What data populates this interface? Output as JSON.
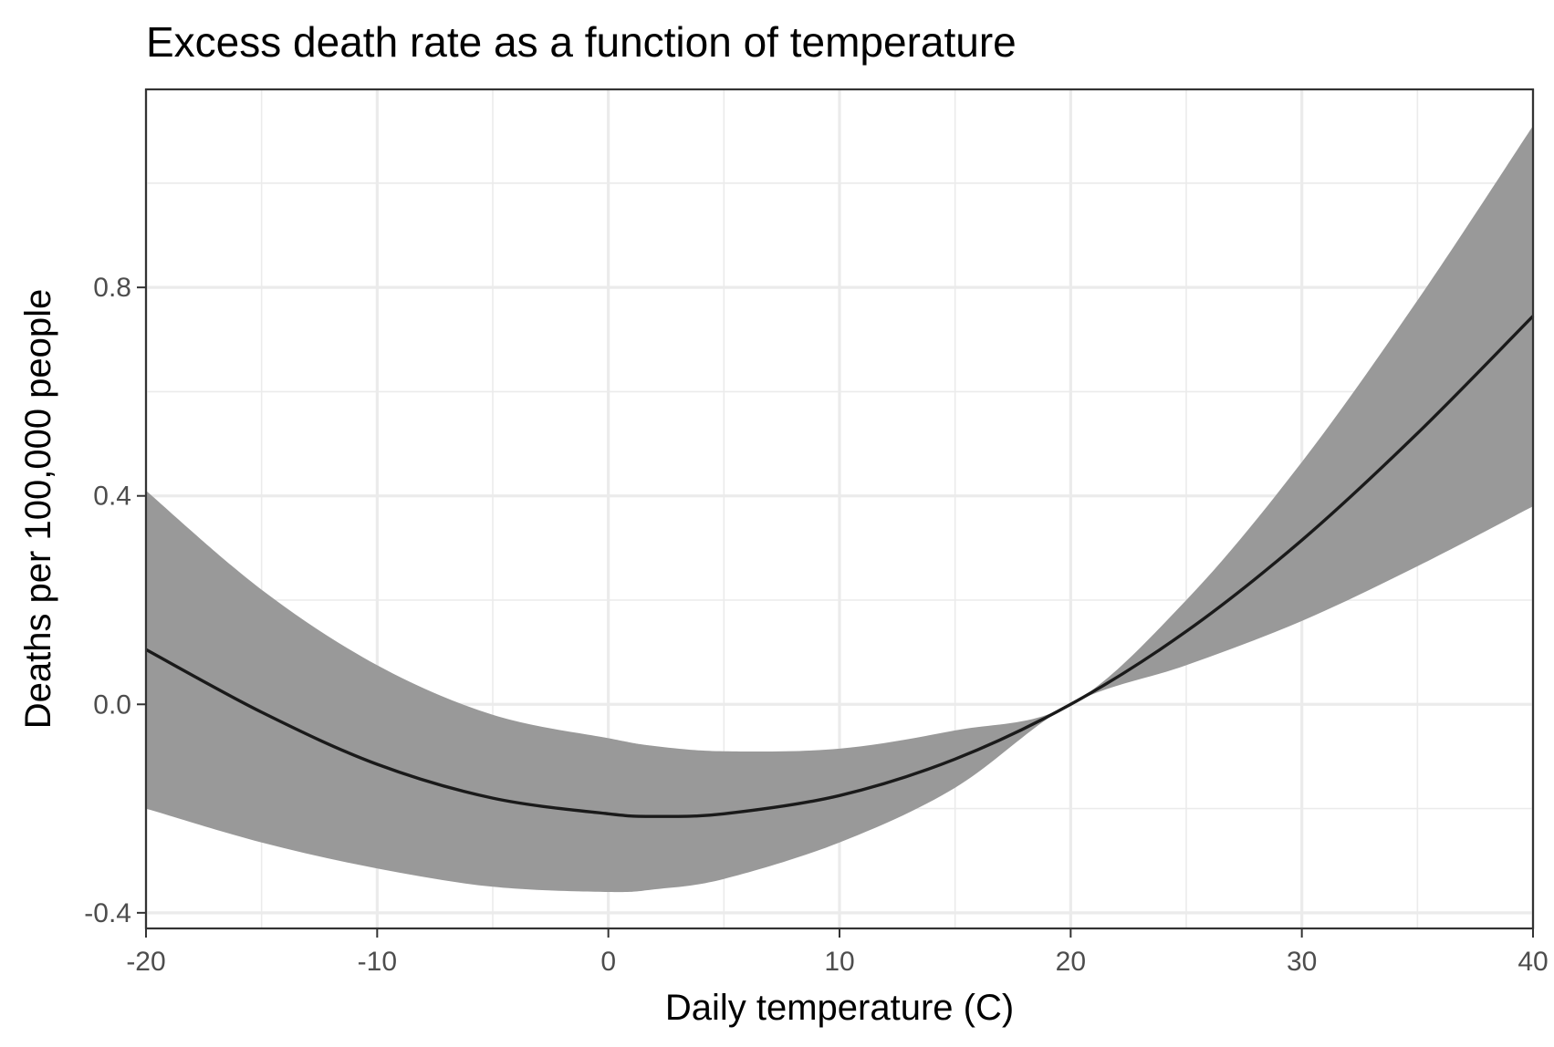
{
  "chart_data": {
    "type": "line",
    "title": "Excess death rate as a function of temperature",
    "xlabel": "Daily temperature (C)",
    "ylabel": "Deaths per 100,000 people",
    "xlim": [
      -20,
      40
    ],
    "ylim": [
      -0.43,
      1.18
    ],
    "x_ticks": [
      -20,
      -10,
      0,
      10,
      20,
      30,
      40
    ],
    "x_tick_labels": [
      "-20",
      "-10",
      "0",
      "10",
      "20",
      "30",
      "40"
    ],
    "x_minor_ticks": [
      -15,
      -5,
      5,
      15,
      25,
      35
    ],
    "y_ticks": [
      -0.4,
      0.0,
      0.4,
      0.8
    ],
    "y_tick_labels": [
      "-0.4",
      "0.0",
      "0.4",
      "0.8"
    ],
    "y_minor_ticks": [
      -0.2,
      0.2,
      0.6,
      1.0
    ],
    "grid": true,
    "colors": {
      "line": "#1a1a1a",
      "ribbon": "#999999",
      "grid": "#ebebeb",
      "frame": "#333333"
    },
    "series": [
      {
        "x": [
          -20,
          -15,
          -10,
          -5,
          0,
          2,
          5,
          10,
          15,
          20,
          25,
          30,
          35,
          40
        ],
        "values": [
          0.105,
          -0.015,
          -0.115,
          -0.18,
          -0.21,
          -0.215,
          -0.21,
          -0.175,
          -0.105,
          0.0,
          0.14,
          0.315,
          0.52,
          0.745
        ],
        "lower": [
          -0.2,
          -0.265,
          -0.315,
          -0.35,
          -0.36,
          -0.355,
          -0.335,
          -0.265,
          -0.16,
          0.0,
          0.075,
          0.16,
          0.265,
          0.38
        ],
        "upper": [
          0.41,
          0.22,
          0.075,
          -0.02,
          -0.065,
          -0.08,
          -0.09,
          -0.085,
          -0.05,
          0.0,
          0.2,
          0.465,
          0.775,
          1.11
        ]
      }
    ]
  }
}
